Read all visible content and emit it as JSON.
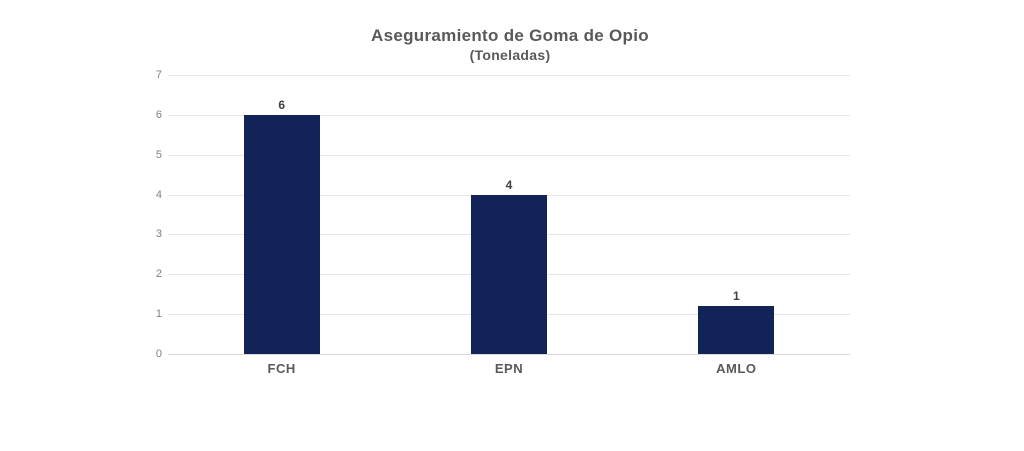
{
  "page": {
    "background_color": "#ffffff"
  },
  "chart_data": {
    "type": "bar",
    "title": "Aseguramiento de Goma de Opio",
    "subtitle": "(Toneladas)",
    "categories": [
      "FCH",
      "EPN",
      "AMLO"
    ],
    "values": [
      6,
      4,
      1.2
    ],
    "data_labels": [
      "6",
      "4",
      "1"
    ],
    "y_ticks": [
      0,
      1,
      2,
      3,
      4,
      5,
      6,
      7
    ],
    "ylim": [
      0,
      7
    ],
    "xlabel": "",
    "ylabel": "",
    "grid": true,
    "legend": false,
    "bar_color": "#12235a",
    "gridline_color": "#e7e7e7",
    "axis_line_color": "#d9d9d9",
    "tick_label_color": "#808080",
    "title_color": "#595959",
    "data_label_color": "#404040",
    "category_label_color": "#595959"
  }
}
